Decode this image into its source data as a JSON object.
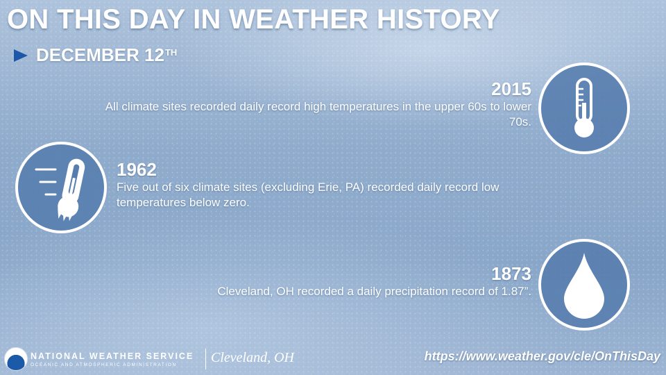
{
  "header": {
    "title": "ON THIS DAY IN WEATHER HISTORY",
    "date": "DECEMBER 12",
    "date_suffix": "TH"
  },
  "events": [
    {
      "year": "2015",
      "description": "All climate sites recorded daily record high temperatures in the upper 60s to lower 70s.",
      "icon": "thermometer-icon"
    },
    {
      "year": "1962",
      "description": "Five out of six climate sites (excluding Erie, PA) recorded daily record low temperatures below zero.",
      "icon": "frozen-thermometer-icon"
    },
    {
      "year": "1873",
      "description": "Cleveland, OH recorded a daily precipitation record of 1.87”.",
      "icon": "raindrop-icon"
    }
  ],
  "footer": {
    "agency": "NATIONAL WEATHER SERVICE",
    "agency_sub": "OCEANIC AND ATMOSPHERIC ADMINISTRATION",
    "office": "Cleveland, OH",
    "url": "https://www.weather.gov/cle/OnThisDay"
  },
  "colors": {
    "accent": "#1f57a8",
    "circle_fill": "#567dae",
    "text": "#ffffff"
  }
}
